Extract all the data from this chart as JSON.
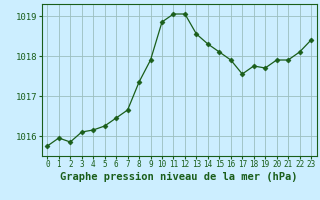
{
  "x": [
    0,
    1,
    2,
    3,
    4,
    5,
    6,
    7,
    8,
    9,
    10,
    11,
    12,
    13,
    14,
    15,
    16,
    17,
    18,
    19,
    20,
    21,
    22,
    23
  ],
  "y": [
    1015.75,
    1015.95,
    1015.85,
    1016.1,
    1016.15,
    1016.25,
    1016.45,
    1016.65,
    1017.35,
    1017.9,
    1018.85,
    1019.05,
    1019.05,
    1018.55,
    1018.3,
    1018.1,
    1017.9,
    1017.55,
    1017.75,
    1017.7,
    1017.9,
    1017.9,
    1018.1,
    1018.4
  ],
  "line_color": "#1a5e1a",
  "marker": "D",
  "markersize": 2.5,
  "bg_color": "#cceeff",
  "grid_color": "#9bbfbf",
  "xlabel": "Graphe pression niveau de la mer (hPa)",
  "xlabel_fontsize": 7.5,
  "yticks": [
    1016,
    1017,
    1018,
    1019
  ],
  "ylim": [
    1015.5,
    1019.3
  ],
  "xlim": [
    -0.5,
    23.5
  ],
  "ytick_fontsize": 6.5,
  "xtick_fontsize": 5.5
}
